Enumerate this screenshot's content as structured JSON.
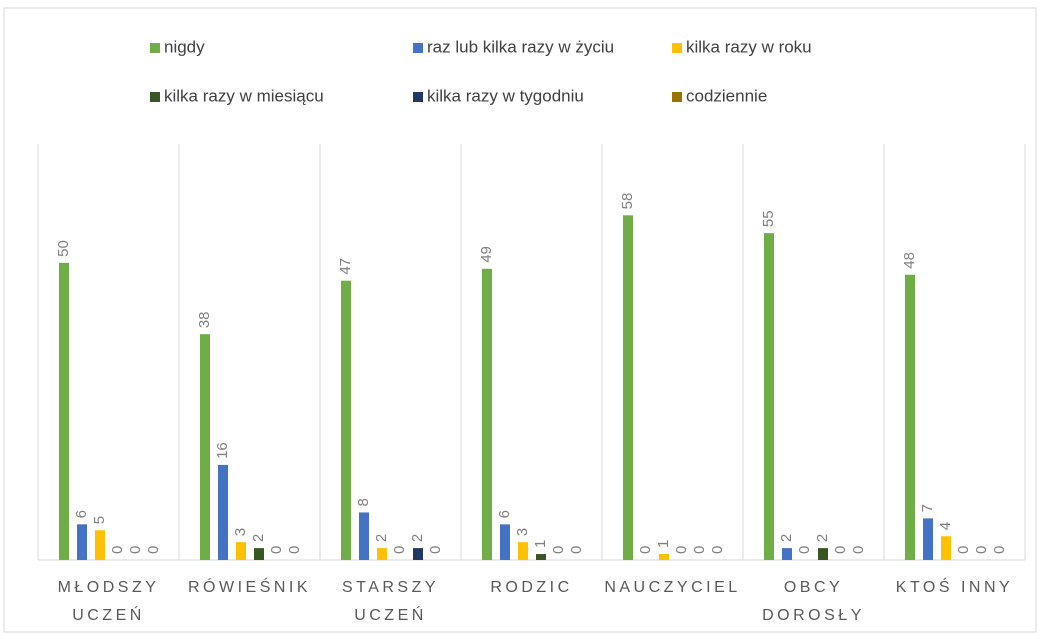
{
  "chart_data": {
    "type": "bar",
    "categories": [
      "MŁODSZY UCZEŃ",
      "RÓWIEŚNIK",
      "STARSZY UCZEŃ",
      "RODZIC",
      "NAUCZYCIEL",
      "OBCY DOROSŁY",
      "KTOŚ INNY"
    ],
    "series": [
      {
        "name": "nigdy",
        "color": "#70ad47",
        "values": [
          50,
          38,
          47,
          49,
          58,
          55,
          48
        ]
      },
      {
        "name": "raz lub kilka razy w życiu",
        "color": "#4472c4",
        "values": [
          6,
          16,
          8,
          6,
          0,
          2,
          7
        ]
      },
      {
        "name": "kilka razy w roku",
        "color": "#ffc000",
        "values": [
          5,
          3,
          2,
          3,
          1,
          0,
          4
        ]
      },
      {
        "name": "kilka razy w miesiącu",
        "color": "#375623",
        "values": [
          0,
          2,
          0,
          1,
          0,
          2,
          0
        ]
      },
      {
        "name": "kilka razy w tygodniu",
        "color": "#203864",
        "values": [
          0,
          0,
          2,
          0,
          0,
          0,
          0
        ]
      },
      {
        "name": "codziennie",
        "color": "#997300",
        "values": [
          0,
          0,
          0,
          0,
          0,
          0,
          0
        ]
      }
    ],
    "ylim": [
      0,
      70
    ],
    "legend": "top"
  }
}
